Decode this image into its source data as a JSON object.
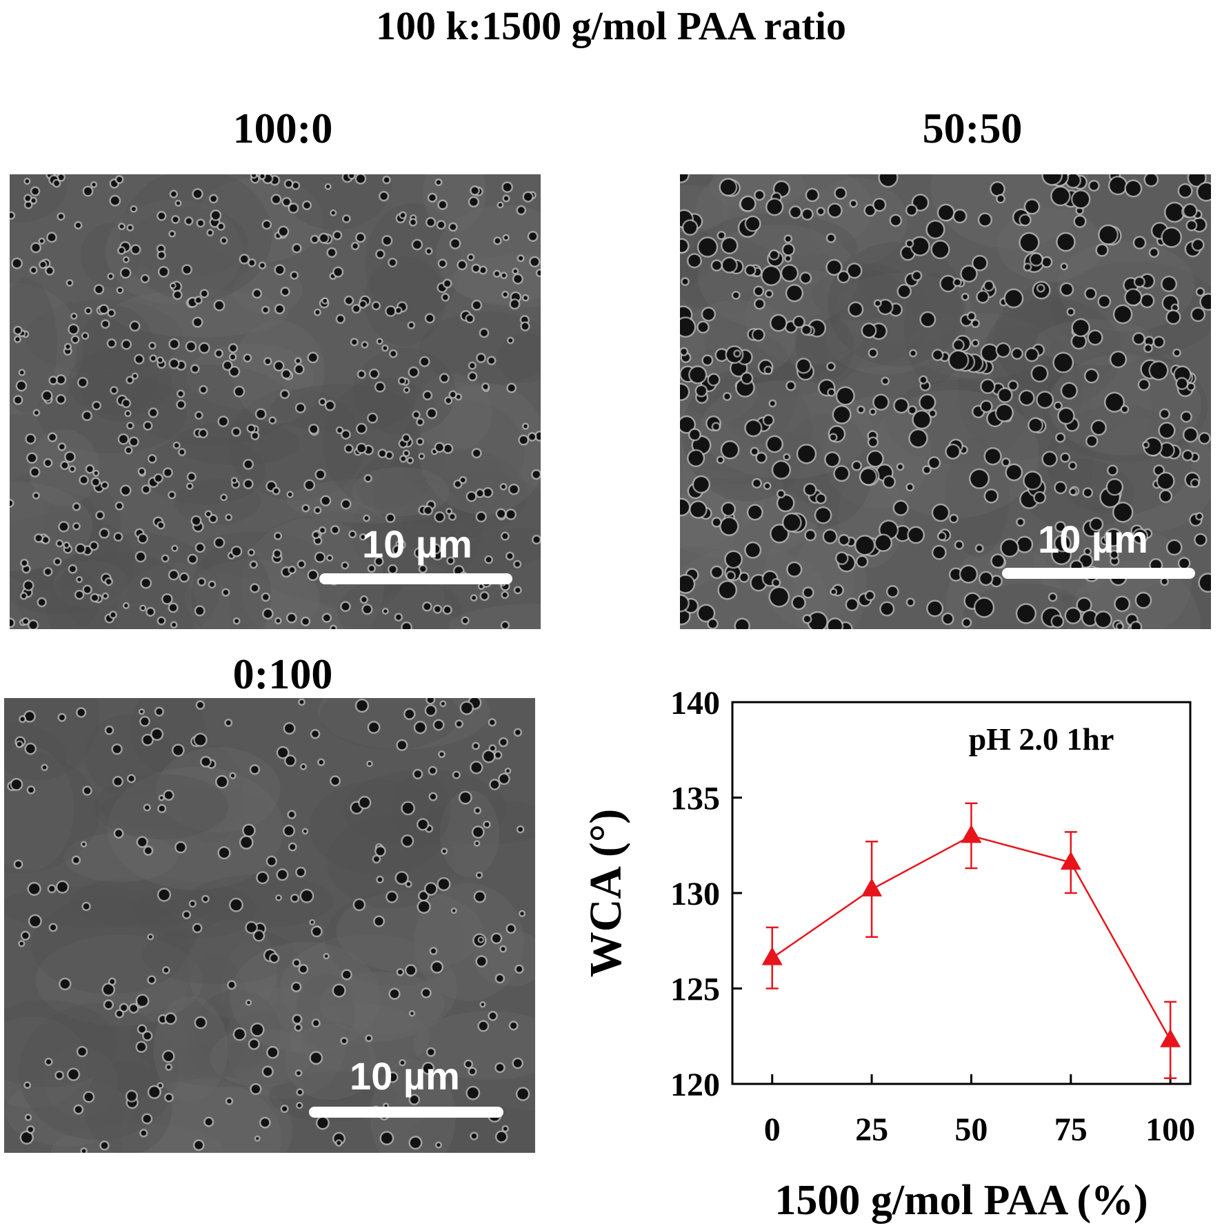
{
  "figure": {
    "title": "100 k:1500 g/mol PAA ratio"
  },
  "panels": [
    {
      "label": "100:0",
      "scale_bar": "10 µm"
    },
    {
      "label": "50:50",
      "scale_bar": "10 µm"
    },
    {
      "label": "0:100",
      "scale_bar": "10 µm"
    }
  ],
  "chart_data": {
    "type": "line",
    "x": [
      0,
      25,
      50,
      75,
      100
    ],
    "series": [
      {
        "values": [
          126.6,
          130.2,
          133.0,
          131.6,
          122.3
        ],
        "errors": [
          1.6,
          2.5,
          1.7,
          1.6,
          2.0
        ],
        "marker": "triangle",
        "color": "#e8141c"
      }
    ],
    "annotation": "pH 2.0 1hr",
    "xlabel": "1500 g/mol PAA (%)",
    "ylabel": "WCA (°)",
    "xticks": [
      "0",
      "25",
      "50",
      "75",
      "100"
    ],
    "yticks": [
      "120",
      "125",
      "130",
      "135",
      "140"
    ],
    "xlim": [
      -10,
      105
    ],
    "ylim": [
      120,
      140
    ],
    "grid": false
  }
}
